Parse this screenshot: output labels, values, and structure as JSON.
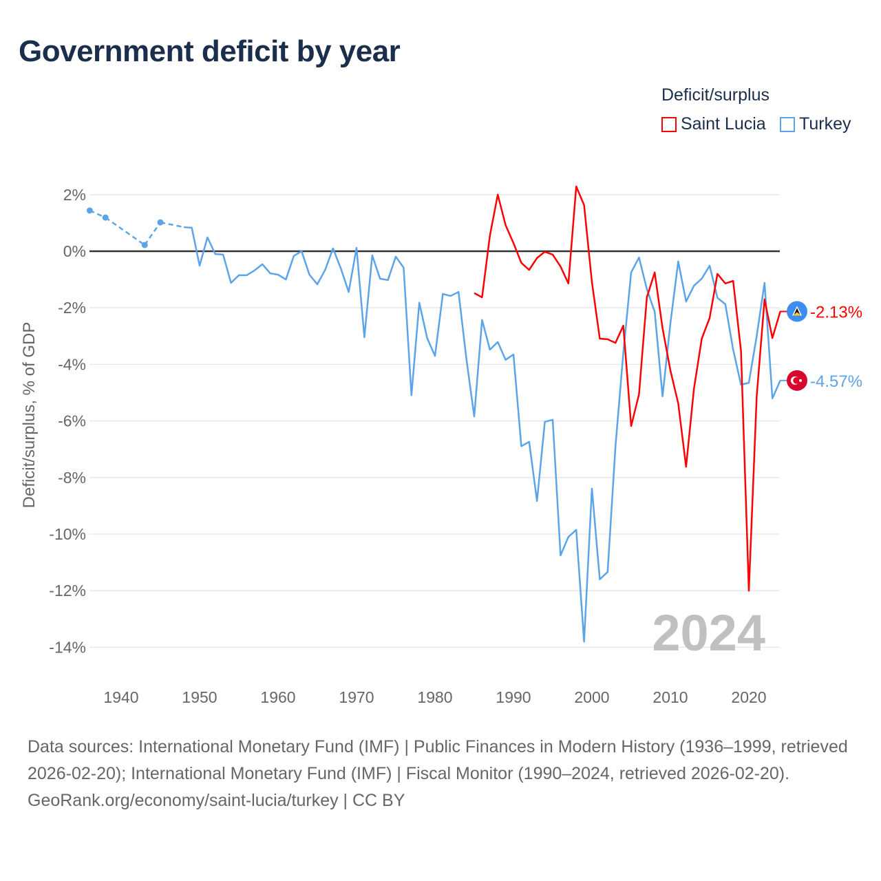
{
  "title": "Government deficit by year",
  "legend": {
    "title": "Deficit/surplus",
    "items": [
      "Saint Lucia",
      "Turkey"
    ]
  },
  "year_label": "2024",
  "footer": {
    "sources": "Data sources: International Monetary Fund (IMF) | Public Finances in Modern History (1936–1999, retrieved 2026-02-20); International Monetary Fund (IMF) | Fiscal Monitor (1990–2024, retrieved 2026-02-20).",
    "credit": "GeoRank.org/economy/saint-lucia/turkey | CC BY"
  },
  "chart_data": {
    "type": "line",
    "title": "Government deficit by year",
    "xlabel": "",
    "ylabel": "Deficit/surplus, % of GDP",
    "xlim": [
      1936,
      2024
    ],
    "ylim": [
      -14,
      2
    ],
    "x_ticks": [
      "1940",
      "1950",
      "1960",
      "1970",
      "1980",
      "1990",
      "2000",
      "2010",
      "2020"
    ],
    "y_ticks": [
      "2%",
      "0%",
      "-2%",
      "-4%",
      "-6%",
      "-8%",
      "-10%",
      "-12%",
      "-14%"
    ],
    "grid": true,
    "legend_position": "top-right",
    "series": [
      {
        "name": "Saint Lucia",
        "color": "#ff0000",
        "end_label": "-2.13%",
        "x": [
          1985,
          1986,
          1987,
          1988,
          1989,
          1990,
          1991,
          1992,
          1993,
          1994,
          1995,
          1996,
          1997,
          1998,
          1999,
          2000,
          2001,
          2002,
          2003,
          2004,
          2005,
          2006,
          2007,
          2008,
          2009,
          2010,
          2011,
          2012,
          2013,
          2014,
          2015,
          2016,
          2017,
          2018,
          2019,
          2020,
          2021,
          2022,
          2023,
          2024
        ],
        "y": [
          -1.48,
          -1.63,
          0.56,
          2.0,
          0.92,
          0.29,
          -0.41,
          -0.66,
          -0.24,
          -0.02,
          -0.12,
          -0.54,
          -1.14,
          2.29,
          1.63,
          -1.09,
          -3.09,
          -3.11,
          -3.24,
          -2.63,
          -6.18,
          -5.06,
          -1.63,
          -0.75,
          -2.72,
          -4.21,
          -5.38,
          -7.62,
          -4.87,
          -3.09,
          -2.36,
          -0.8,
          -1.14,
          -1.05,
          -3.53,
          -12.0,
          -5.13,
          -1.7,
          -3.07,
          -2.13
        ]
      },
      {
        "name": "Turkey",
        "color": "#5ba4ea",
        "end_label": "-4.57%",
        "x": [
          1936,
          1938,
          1943,
          1945,
          1948,
          1949,
          1950,
          1951,
          1952,
          1953,
          1954,
          1955,
          1956,
          1957,
          1958,
          1959,
          1960,
          1961,
          1962,
          1963,
          1964,
          1965,
          1966,
          1967,
          1968,
          1969,
          1970,
          1971,
          1972,
          1973,
          1974,
          1975,
          1976,
          1977,
          1978,
          1979,
          1980,
          1981,
          1982,
          1983,
          1984,
          1985,
          1986,
          1987,
          1988,
          1989,
          1990,
          1991,
          1992,
          1993,
          1994,
          1995,
          1996,
          1997,
          1998,
          1999,
          2000,
          2001,
          2002,
          2003,
          2004,
          2005,
          2006,
          2007,
          2008,
          2009,
          2010,
          2011,
          2012,
          2013,
          2014,
          2015,
          2016,
          2017,
          2018,
          2019,
          2020,
          2021,
          2022,
          2023,
          2024
        ],
        "y": [
          1.44,
          1.19,
          0.22,
          1.02,
          0.85,
          0.83,
          -0.51,
          0.49,
          -0.1,
          -0.12,
          -1.12,
          -0.85,
          -0.85,
          -0.68,
          -0.46,
          -0.78,
          -0.83,
          -1.0,
          -0.17,
          0.0,
          -0.83,
          -1.17,
          -0.66,
          0.1,
          -0.61,
          -1.44,
          0.12,
          -3.04,
          -0.15,
          -0.97,
          -1.02,
          -0.19,
          -0.58,
          -5.09,
          -1.82,
          -3.07,
          -3.7,
          -1.51,
          -1.58,
          -1.44,
          -3.8,
          -5.84,
          -2.43,
          -3.48,
          -3.21,
          -3.84,
          -3.65,
          -6.89,
          -6.74,
          -8.83,
          -6.03,
          -5.96,
          -10.75,
          -10.1,
          -9.85,
          -13.8,
          -8.39,
          -11.6,
          -11.34,
          -6.9,
          -3.6,
          -0.75,
          -0.22,
          -1.34,
          -2.14,
          -5.13,
          -2.55,
          -0.36,
          -1.78,
          -1.22,
          -0.97,
          -0.51,
          -1.65,
          -1.87,
          -3.48,
          -4.72,
          -4.65,
          -3.0,
          -1.12,
          -5.2,
          -4.57
        ]
      }
    ]
  }
}
